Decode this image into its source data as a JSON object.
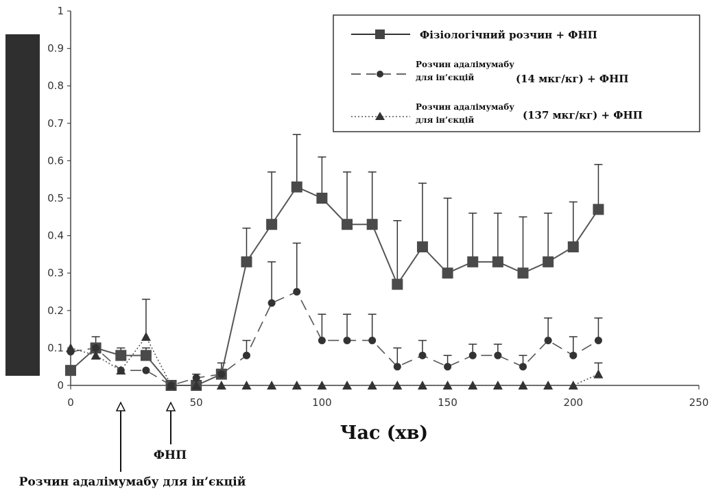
{
  "chart_data": {
    "type": "line",
    "title": "",
    "xlabel": "Час (хв)",
    "ylabel": "",
    "xlim": [
      0,
      250
    ],
    "ylim": [
      0,
      1
    ],
    "x_ticks": [
      "0",
      "50",
      "100",
      "150",
      "200",
      "250"
    ],
    "y_ticks": [
      "0",
      "0.1",
      "0.2",
      "0.3",
      "0.4",
      "0.5",
      "0.6",
      "0.7",
      "0.8",
      "0.9",
      "1"
    ],
    "legend_position": "top-right",
    "series": [
      {
        "legend_line1": "Фізіологічний розчин + ФНП",
        "legend_line2": "",
        "legend_suffix": "",
        "marker": "square",
        "line_style": "solid",
        "color": "#555555",
        "x": [
          0,
          10,
          20,
          30,
          40,
          50,
          60,
          70,
          80,
          90,
          100,
          110,
          120,
          130,
          140,
          150,
          160,
          170,
          180,
          190,
          200,
          210
        ],
        "y": [
          0.04,
          0.1,
          0.08,
          0.08,
          0.0,
          0.0,
          0.03,
          0.33,
          0.43,
          0.53,
          0.5,
          0.43,
          0.43,
          0.27,
          0.37,
          0.3,
          0.33,
          0.33,
          0.3,
          0.33,
          0.37,
          0.47
        ],
        "err": [
          0.0,
          0.03,
          0.02,
          0.02,
          0.0,
          0.03,
          0.03,
          0.09,
          0.14,
          0.14,
          0.11,
          0.14,
          0.14,
          0.17,
          0.17,
          0.2,
          0.13,
          0.13,
          0.15,
          0.13,
          0.12,
          0.12
        ]
      },
      {
        "legend_line1": "Розчин адалімумабу",
        "legend_line2": "для ін’єкцій",
        "legend_suffix": "(14 мкг/кг) + ФНП",
        "marker": "circle",
        "line_style": "dashed",
        "color": "#555555",
        "x": [
          0,
          10,
          20,
          30,
          40,
          50,
          60,
          70,
          80,
          90,
          100,
          110,
          120,
          130,
          140,
          150,
          160,
          170,
          180,
          190,
          200,
          210
        ],
        "y": [
          0.09,
          0.1,
          0.04,
          0.04,
          0.0,
          0.02,
          0.03,
          0.08,
          0.22,
          0.25,
          0.12,
          0.12,
          0.12,
          0.05,
          0.08,
          0.05,
          0.08,
          0.08,
          0.05,
          0.12,
          0.08,
          0.12
        ],
        "err": [
          0.0,
          0.0,
          0.0,
          0.0,
          0.0,
          0.0,
          0.0,
          0.04,
          0.11,
          0.13,
          0.07,
          0.07,
          0.07,
          0.05,
          0.04,
          0.03,
          0.03,
          0.03,
          0.03,
          0.06,
          0.05,
          0.06
        ]
      },
      {
        "legend_line1": "Розчин адалімумабу",
        "legend_line2": "для ін’єкцій",
        "legend_suffix": "(137 мкг/кг) + ФНП",
        "marker": "triangle",
        "line_style": "dotted",
        "color": "#555555",
        "x": [
          0,
          10,
          20,
          30,
          40,
          50,
          60,
          70,
          80,
          90,
          100,
          110,
          120,
          130,
          140,
          150,
          160,
          170,
          180,
          190,
          200,
          210
        ],
        "y": [
          0.1,
          0.08,
          0.04,
          0.13,
          0.0,
          0.0,
          0.0,
          0.0,
          0.0,
          0.0,
          0.0,
          0.0,
          0.0,
          0.0,
          0.0,
          0.0,
          0.0,
          0.0,
          0.0,
          0.0,
          0.0,
          0.03
        ],
        "err": [
          0.0,
          0.0,
          0.0,
          0.1,
          0.0,
          0.0,
          0.0,
          0.0,
          0.0,
          0.0,
          0.0,
          0.0,
          0.0,
          0.0,
          0.0,
          0.0,
          0.0,
          0.0,
          0.0,
          0.0,
          0.0,
          0.03
        ]
      }
    ],
    "annotations": [
      {
        "text": "ФНП",
        "x": 40
      },
      {
        "text": "Розчин адалімумабу для ін’єкцій",
        "x": 20
      }
    ]
  }
}
